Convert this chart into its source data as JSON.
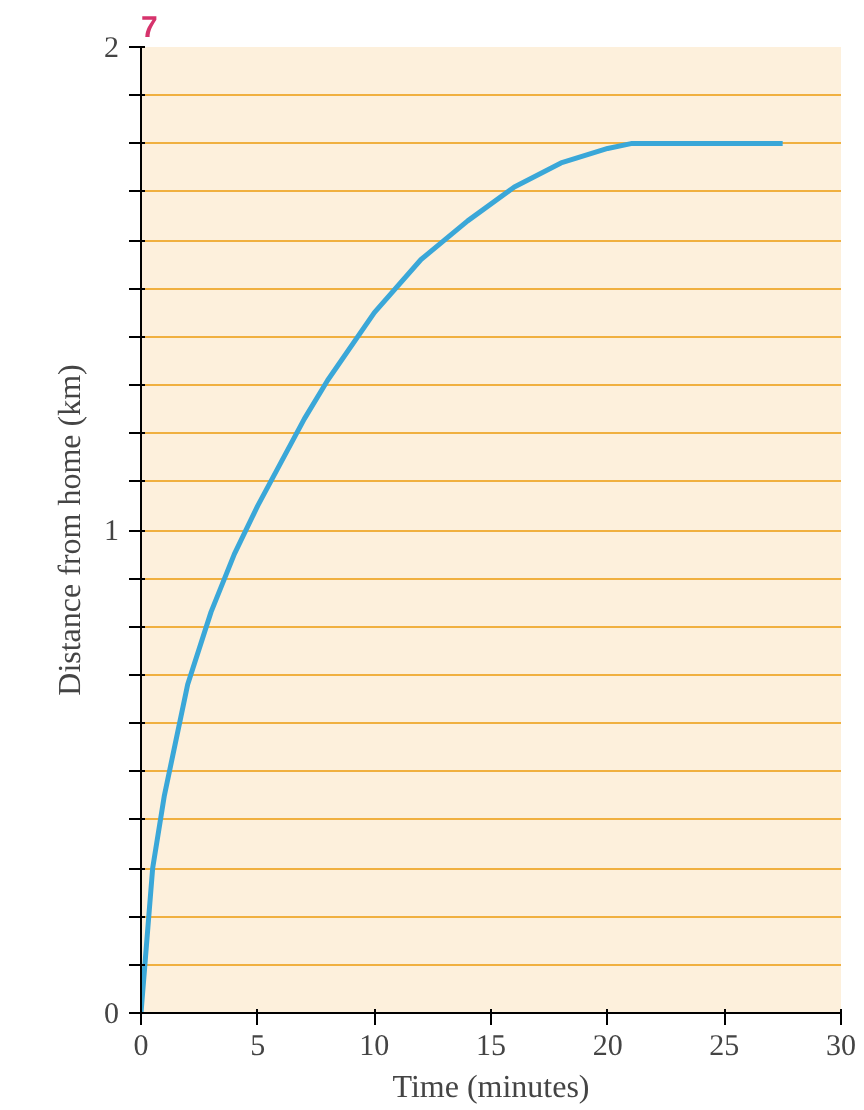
{
  "chart_data": {
    "type": "line",
    "title": "7",
    "xlabel": "Time (minutes)",
    "ylabel": "Distance from home (km)",
    "x": [
      0,
      0.5,
      1,
      2,
      3,
      4,
      5,
      6,
      7,
      8,
      10,
      12,
      14,
      16,
      18,
      20,
      21,
      27.5
    ],
    "series": [
      {
        "color": "#3aa7d8",
        "values": [
          0,
          0.3,
          0.45,
          0.68,
          0.83,
          0.95,
          1.05,
          1.14,
          1.23,
          1.31,
          1.45,
          1.56,
          1.64,
          1.71,
          1.76,
          1.79,
          1.8,
          1.8
        ]
      }
    ],
    "xlim": [
      0,
      30
    ],
    "ylim": [
      0,
      2
    ],
    "xticks": [
      0,
      5,
      10,
      15,
      20,
      25,
      30
    ],
    "yticks": [
      0,
      {
        "value": 0.1,
        "label": null
      },
      {
        "value": 0.2,
        "label": null
      },
      {
        "value": 0.3,
        "label": null
      },
      {
        "value": 0.4,
        "label": null
      },
      {
        "value": 0.5,
        "label": null
      },
      {
        "value": 0.6,
        "label": null
      },
      {
        "value": 0.7,
        "label": null
      },
      {
        "value": 0.8,
        "label": null
      },
      {
        "value": 0.9,
        "label": null
      },
      1,
      {
        "value": 1.1,
        "label": null
      },
      {
        "value": 1.2,
        "label": null
      },
      {
        "value": 1.3,
        "label": null
      },
      {
        "value": 1.4,
        "label": null
      },
      {
        "value": 1.5,
        "label": null
      },
      {
        "value": 1.6,
        "label": null
      },
      {
        "value": 1.7,
        "label": null
      },
      {
        "value": 1.8,
        "label": null
      },
      {
        "value": 1.9,
        "label": null
      },
      2
    ],
    "grid": "y",
    "marker": "none",
    "line_style": "solid"
  }
}
